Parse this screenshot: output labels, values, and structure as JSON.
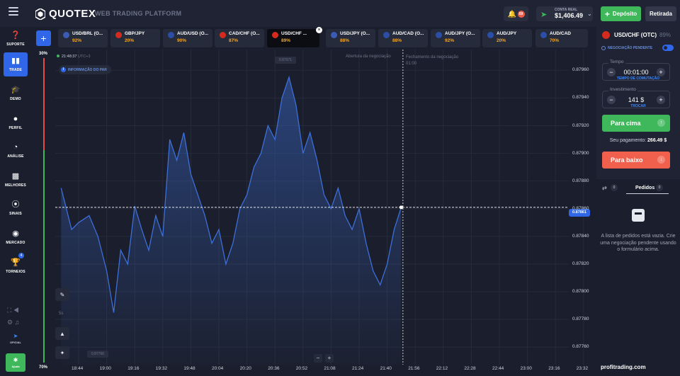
{
  "header": {
    "brand": "QUOTEX",
    "tagline": "WEB TRADING PLATFORM",
    "notifications_count": "69",
    "account_label": "CONTA REAL",
    "balance": "$1,406.49",
    "deposit_label": "Depósito",
    "withdraw_label": "Retirada"
  },
  "sidebar": {
    "items": [
      {
        "label": "SUPORTE",
        "icon": "help-icon"
      },
      {
        "label": "TRADE",
        "icon": "chart-icon",
        "active": true
      },
      {
        "label": "DEMO",
        "icon": "graduation-cap-icon"
      },
      {
        "label": "PERFIL",
        "icon": "user-icon"
      },
      {
        "label": "ANÁLISE",
        "icon": "pie-chart-icon"
      },
      {
        "label": "MELHORES",
        "icon": "leaderboard-icon"
      },
      {
        "label": "SINAIS",
        "icon": "signal-icon"
      },
      {
        "label": "MERCADO",
        "icon": "market-icon"
      },
      {
        "label": "TORNEIOS",
        "icon": "trophy-icon"
      }
    ],
    "torneios_badge": "4",
    "oficial_label": "OFICIAL",
    "help_label": "Ajuda"
  },
  "sentiment": {
    "top": "30%",
    "bottom": "70%"
  },
  "asset_tabs": [
    {
      "name": "USD/BRL (O...",
      "pct": "92%"
    },
    {
      "name": "GBP/JPY",
      "pct": "20%"
    },
    {
      "name": "AUD/USD (O...",
      "pct": "90%"
    },
    {
      "name": "CAD/CHF (O...",
      "pct": "87%"
    },
    {
      "name": "USD/CHF ...",
      "pct": "89%",
      "active": true
    },
    {
      "name": "USD/JPY (O...",
      "pct": "88%"
    },
    {
      "name": "AUD/CAD (O...",
      "pct": "88%"
    },
    {
      "name": "AUD/JPY (O...",
      "pct": "92%"
    },
    {
      "name": "AUD/JPY",
      "pct": "20%"
    },
    {
      "name": "AUD/CAD",
      "pct": "70%"
    }
  ],
  "chart": {
    "clock": "21:48:37",
    "timezone": "UTC+3",
    "pair_info": "INFORMAÇÃO DO PAR",
    "open_label": "Abertura da negociação",
    "close_label": "Fechamento da negociação",
    "close_time": "01:00",
    "high_tag": "0.87971",
    "low_tag": "0.87766",
    "current_price": "0.87861",
    "timeframe": "5s"
  },
  "chart_data": {
    "type": "area",
    "title": "",
    "xlabel": "",
    "ylabel": "",
    "x_ticks": [
      "18:44",
      "19:00",
      "19:16",
      "19:32",
      "19:48",
      "20:04",
      "20:20",
      "20:36",
      "20:52",
      "21:08",
      "21:24",
      "21:40",
      "21:56",
      "22:12",
      "22:28",
      "22:44",
      "23:00",
      "23:16",
      "23:32"
    ],
    "y_ticks": [
      "0.87960",
      "0.87940",
      "0.87920",
      "0.87900",
      "0.87880",
      "0.87860",
      "0.87840",
      "0.87820",
      "0.87800",
      "0.87780",
      "0.87760"
    ],
    "ylim": [
      0.87755,
      0.87975
    ],
    "x": [
      "18:34",
      "18:40",
      "18:44",
      "18:50",
      "18:55",
      "19:00",
      "19:04",
      "19:08",
      "19:12",
      "19:16",
      "19:20",
      "19:24",
      "19:28",
      "19:32",
      "19:36",
      "19:40",
      "19:44",
      "19:48",
      "19:52",
      "19:56",
      "20:00",
      "20:04",
      "20:08",
      "20:12",
      "20:16",
      "20:20",
      "20:24",
      "20:28",
      "20:32",
      "20:36",
      "20:40",
      "20:44",
      "20:48",
      "20:52",
      "20:56",
      "21:00",
      "21:04",
      "21:08",
      "21:12",
      "21:16",
      "21:20",
      "21:24",
      "21:28",
      "21:32",
      "21:36",
      "21:40",
      "21:44",
      "21:48"
    ],
    "y": [
      0.87875,
      0.87845,
      0.8785,
      0.87855,
      0.8784,
      0.87815,
      0.87785,
      0.8783,
      0.8782,
      0.87862,
      0.87845,
      0.8783,
      0.87855,
      0.8784,
      0.8791,
      0.87895,
      0.87915,
      0.87885,
      0.8787,
      0.87855,
      0.87835,
      0.87845,
      0.8782,
      0.87835,
      0.8786,
      0.8787,
      0.8789,
      0.879,
      0.8792,
      0.8791,
      0.8794,
      0.87955,
      0.87935,
      0.879,
      0.87915,
      0.87895,
      0.8787,
      0.8786,
      0.87875,
      0.87855,
      0.87845,
      0.8786,
      0.87835,
      0.87815,
      0.87805,
      0.8782,
      0.87845,
      0.87861
    ],
    "grid": true
  },
  "panel": {
    "asset": "USD/CHF (OTC)",
    "asset_pct": "89%",
    "pending_label": "NEGOCIAÇÃO PENDENTE",
    "time_label": "Tempo",
    "time_value": "00:01:00",
    "time_sub": "TEMPO DE COMUTAÇÃO",
    "invest_label": "Investimento",
    "invest_value": "141 $",
    "invest_sub": "TROCAR",
    "up_label": "Para cima",
    "payout_label": "Seu pagamento:",
    "payout_value": "266.49 $",
    "down_label": "Para baixo",
    "orders_count_left": "0",
    "orders_title": "Pedidos",
    "orders_count": "0",
    "orders_empty": "A lista de pedidos está vazia. Crie uma negociação pendente usando o formulário acima."
  },
  "watermark": "profitrading.com",
  "colors": {
    "accent": "#2f67e8",
    "up": "#3fb75b",
    "down": "#f0604d",
    "line": "#3d6fd8"
  }
}
